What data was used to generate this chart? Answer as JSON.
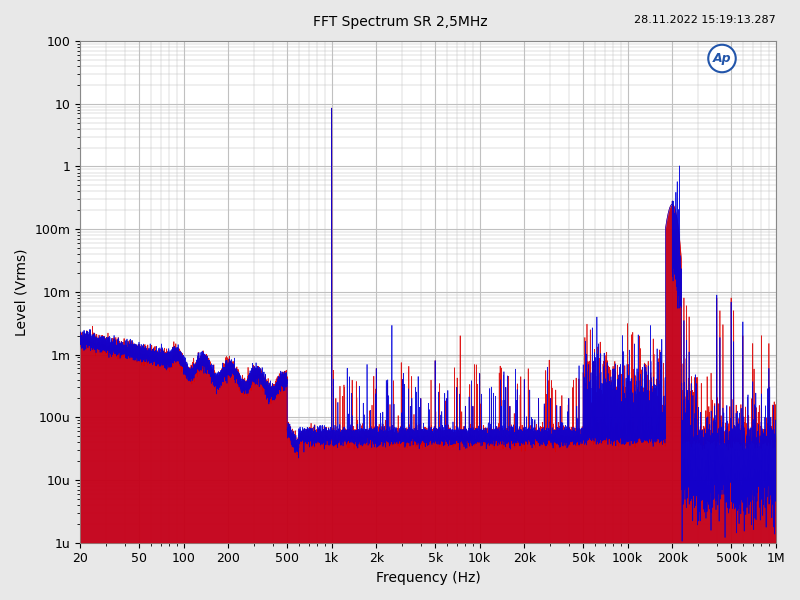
{
  "title": "FFT Spectrum SR 2,5MHz",
  "datetime_label": "28.11.2022 15:19:13.287",
  "xlabel": "Frequency (Hz)",
  "ylabel": "Level (Vrms)",
  "xmin": 20,
  "xmax": 1000000,
  "ymin": 1e-06,
  "ymax": 100,
  "xticks": [
    20,
    50,
    100,
    200,
    500,
    1000,
    2000,
    5000,
    10000,
    20000,
    50000,
    100000,
    200000,
    500000,
    1000000
  ],
  "xtick_labels": [
    "20",
    "50",
    "100",
    "200",
    "500",
    "1k",
    "2k",
    "5k",
    "10k",
    "20k",
    "50k",
    "100k",
    "200k",
    "500k",
    "1M"
  ],
  "yticks": [
    1e-06,
    1e-05,
    0.0001,
    0.001,
    0.01,
    0.1,
    1,
    10,
    100
  ],
  "ytick_labels": [
    "1u",
    "10u",
    "100u",
    "1m",
    "10m",
    "100m",
    "1",
    "10",
    "100"
  ],
  "bg_color": "#e8e8e8",
  "plot_bg_color": "#ffffff",
  "grid_color": "#c0c0c0",
  "title_color": "#000000",
  "axis_label_color": "#000000",
  "tick_label_color": "#000000",
  "line_color_red": "#dd0000",
  "line_color_blue": "#0000dd",
  "noise_floor": 5e-05,
  "fundamental_freq": 1000,
  "fundamental_amp": 8.5
}
